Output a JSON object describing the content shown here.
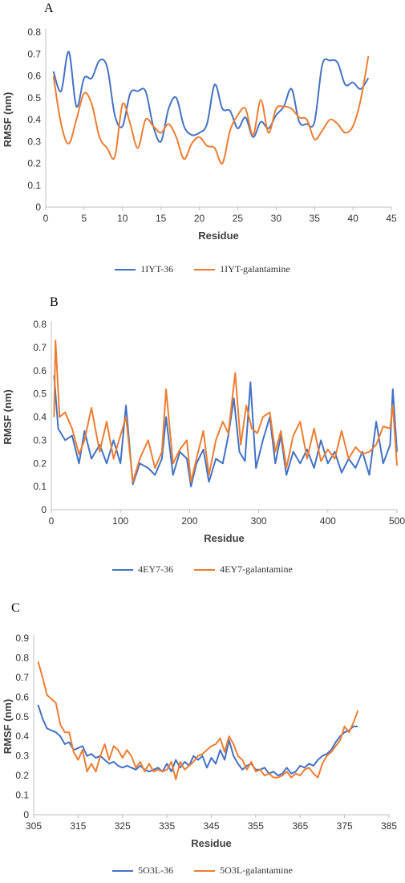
{
  "colors": {
    "series1": "#4472C4",
    "series2": "#ED7D31"
  },
  "panels": [
    {
      "letter": "A",
      "legend": [
        "1IYT-36",
        "1IYT-galantamine"
      ]
    },
    {
      "letter": "B",
      "legend": [
        "4EY7-36",
        "4EY7-galantamine"
      ]
    },
    {
      "letter": "C",
      "legend": [
        "5O3L-36",
        "5O3L-galantamine"
      ]
    }
  ],
  "chart_data": [
    {
      "type": "line",
      "title": "A",
      "xlabel": "Residue",
      "ylabel": "RMSF (nm)",
      "xlim": [
        0,
        45
      ],
      "ylim": [
        0,
        0.8
      ],
      "xticks": [
        0,
        5,
        10,
        15,
        20,
        25,
        30,
        35,
        40,
        45
      ],
      "yticks": [
        0,
        0.1,
        0.2,
        0.3,
        0.4,
        0.5,
        0.6,
        0.7,
        0.8
      ],
      "ytick_labels": [
        "0",
        "0.1",
        "0.2",
        "0.3",
        "0.4",
        "0.5",
        "0.6",
        "0.7",
        "0.8"
      ],
      "smooth": true,
      "series": [
        {
          "name": "1IYT-36",
          "x": [
            1,
            2,
            3,
            4,
            5,
            6,
            7,
            8,
            9,
            10,
            11,
            12,
            13,
            14,
            15,
            16,
            17,
            18,
            19,
            20,
            21,
            22,
            23,
            24,
            25,
            26,
            27,
            28,
            29,
            30,
            31,
            32,
            33,
            34,
            35,
            36,
            37,
            38,
            39,
            40,
            41,
            42
          ],
          "y": [
            0.62,
            0.53,
            0.71,
            0.46,
            0.59,
            0.59,
            0.67,
            0.64,
            0.42,
            0.37,
            0.52,
            0.53,
            0.53,
            0.37,
            0.3,
            0.45,
            0.5,
            0.37,
            0.33,
            0.34,
            0.38,
            0.56,
            0.45,
            0.44,
            0.36,
            0.41,
            0.32,
            0.39,
            0.36,
            0.42,
            0.46,
            0.54,
            0.39,
            0.38,
            0.39,
            0.65,
            0.67,
            0.66,
            0.56,
            0.57,
            0.54,
            0.59
          ]
        },
        {
          "name": "1IYT-galantamine",
          "x": [
            1,
            2,
            3,
            4,
            5,
            6,
            7,
            8,
            9,
            10,
            11,
            12,
            13,
            14,
            15,
            16,
            17,
            18,
            19,
            20,
            21,
            22,
            23,
            24,
            25,
            26,
            27,
            28,
            29,
            30,
            31,
            32,
            33,
            34,
            35,
            36,
            37,
            38,
            39,
            40,
            41,
            42
          ],
          "y": [
            0.6,
            0.38,
            0.29,
            0.4,
            0.52,
            0.47,
            0.32,
            0.27,
            0.23,
            0.47,
            0.38,
            0.27,
            0.4,
            0.37,
            0.34,
            0.38,
            0.32,
            0.22,
            0.29,
            0.32,
            0.28,
            0.27,
            0.2,
            0.35,
            0.42,
            0.45,
            0.33,
            0.49,
            0.34,
            0.45,
            0.46,
            0.45,
            0.41,
            0.4,
            0.31,
            0.35,
            0.4,
            0.38,
            0.34,
            0.37,
            0.49,
            0.69
          ]
        }
      ]
    },
    {
      "type": "line",
      "title": "B",
      "xlabel": "Residue",
      "ylabel": "RMSF (nm)",
      "xlim": [
        0,
        500
      ],
      "ylim": [
        0,
        0.8
      ],
      "xticks": [
        0,
        100,
        200,
        300,
        400,
        500
      ],
      "yticks": [
        0,
        0.1,
        0.2,
        0.3,
        0.4,
        0.5,
        0.6,
        0.7,
        0.8
      ],
      "ytick_labels": [
        "0",
        "0.1",
        "0.2",
        "0.3",
        "0.4",
        "0.5",
        "0.6",
        "0.7",
        "0.8"
      ],
      "smooth": false,
      "series": [
        {
          "name": "4EY7-36",
          "x": [
            4,
            10,
            20,
            30,
            40,
            48,
            58,
            70,
            80,
            90,
            100,
            108,
            118,
            128,
            140,
            150,
            160,
            166,
            176,
            186,
            196,
            202,
            210,
            220,
            228,
            238,
            248,
            256,
            264,
            272,
            280,
            288,
            296,
            306,
            316,
            324,
            332,
            340,
            350,
            360,
            370,
            380,
            390,
            400,
            410,
            420,
            430,
            440,
            450,
            460,
            470,
            480,
            490,
            494,
            500
          ],
          "y": [
            0.58,
            0.35,
            0.3,
            0.32,
            0.2,
            0.34,
            0.22,
            0.28,
            0.2,
            0.3,
            0.2,
            0.45,
            0.11,
            0.2,
            0.18,
            0.15,
            0.22,
            0.4,
            0.15,
            0.25,
            0.22,
            0.1,
            0.2,
            0.26,
            0.12,
            0.22,
            0.2,
            0.32,
            0.48,
            0.25,
            0.21,
            0.55,
            0.18,
            0.3,
            0.4,
            0.2,
            0.32,
            0.15,
            0.25,
            0.2,
            0.26,
            0.18,
            0.3,
            0.2,
            0.25,
            0.16,
            0.22,
            0.18,
            0.25,
            0.15,
            0.38,
            0.2,
            0.28,
            0.52,
            0.25
          ]
        },
        {
          "name": "4EY7-galantamine",
          "x": [
            4,
            6,
            12,
            20,
            30,
            40,
            48,
            58,
            70,
            80,
            90,
            100,
            108,
            118,
            128,
            140,
            150,
            160,
            166,
            176,
            186,
            196,
            202,
            210,
            220,
            228,
            238,
            248,
            256,
            266,
            274,
            282,
            290,
            298,
            306,
            316,
            324,
            332,
            340,
            350,
            360,
            370,
            380,
            390,
            400,
            410,
            420,
            430,
            440,
            450,
            460,
            470,
            480,
            490,
            494,
            500
          ],
          "y": [
            0.4,
            0.73,
            0.4,
            0.42,
            0.35,
            0.24,
            0.3,
            0.44,
            0.25,
            0.38,
            0.22,
            0.32,
            0.4,
            0.12,
            0.22,
            0.3,
            0.18,
            0.25,
            0.52,
            0.2,
            0.26,
            0.3,
            0.12,
            0.22,
            0.34,
            0.15,
            0.3,
            0.38,
            0.33,
            0.59,
            0.28,
            0.45,
            0.35,
            0.33,
            0.4,
            0.42,
            0.25,
            0.34,
            0.18,
            0.32,
            0.38,
            0.22,
            0.35,
            0.21,
            0.26,
            0.22,
            0.34,
            0.22,
            0.27,
            0.24,
            0.25,
            0.28,
            0.36,
            0.35,
            0.45,
            0.19
          ]
        }
      ]
    },
    {
      "type": "line",
      "title": "C",
      "xlabel": "Residue",
      "ylabel": "RMSF (nm)",
      "xlim": [
        305,
        385
      ],
      "ylim": [
        0,
        0.9
      ],
      "xticks": [
        305,
        315,
        325,
        335,
        345,
        355,
        365,
        375,
        385
      ],
      "yticks": [
        0,
        0.1,
        0.2,
        0.3,
        0.4,
        0.5,
        0.6,
        0.7,
        0.8,
        0.9
      ],
      "ytick_labels": [
        "0",
        "0.1",
        "0.2",
        "0.3",
        "0.4",
        "0.5",
        "0.6",
        "0.7",
        "0.8",
        "0.9"
      ],
      "smooth": false,
      "series": [
        {
          "name": "5O3L-36",
          "x": [
            306,
            307,
            308,
            309,
            310,
            311,
            312,
            313,
            314,
            315,
            316,
            317,
            318,
            319,
            320,
            321,
            322,
            323,
            324,
            325,
            326,
            327,
            328,
            329,
            330,
            331,
            332,
            333,
            334,
            335,
            336,
            337,
            338,
            339,
            340,
            341,
            342,
            343,
            344,
            345,
            346,
            347,
            348,
            349,
            350,
            351,
            352,
            353,
            354,
            355,
            356,
            357,
            358,
            359,
            360,
            361,
            362,
            363,
            364,
            365,
            366,
            367,
            368,
            369,
            370,
            371,
            372,
            373,
            374,
            375,
            376,
            377,
            378
          ],
          "y": [
            0.56,
            0.49,
            0.44,
            0.43,
            0.42,
            0.4,
            0.36,
            0.37,
            0.33,
            0.34,
            0.35,
            0.3,
            0.31,
            0.29,
            0.3,
            0.28,
            0.26,
            0.27,
            0.25,
            0.24,
            0.25,
            0.24,
            0.23,
            0.25,
            0.23,
            0.22,
            0.23,
            0.24,
            0.22,
            0.26,
            0.22,
            0.28,
            0.24,
            0.27,
            0.25,
            0.3,
            0.28,
            0.3,
            0.24,
            0.29,
            0.26,
            0.33,
            0.28,
            0.38,
            0.3,
            0.26,
            0.23,
            0.25,
            0.26,
            0.23,
            0.23,
            0.24,
            0.21,
            0.22,
            0.2,
            0.21,
            0.24,
            0.21,
            0.22,
            0.25,
            0.24,
            0.26,
            0.25,
            0.28,
            0.3,
            0.31,
            0.33,
            0.37,
            0.4,
            0.42,
            0.43,
            0.45,
            0.45
          ]
        },
        {
          "name": "5O3L-galantamine",
          "x": [
            306,
            307,
            308,
            309,
            310,
            311,
            312,
            313,
            314,
            315,
            316,
            317,
            318,
            319,
            320,
            321,
            322,
            323,
            324,
            325,
            326,
            327,
            328,
            329,
            330,
            331,
            332,
            333,
            334,
            335,
            336,
            337,
            338,
            339,
            340,
            341,
            342,
            343,
            344,
            345,
            346,
            347,
            348,
            349,
            350,
            351,
            352,
            353,
            354,
            355,
            356,
            357,
            358,
            359,
            360,
            361,
            362,
            363,
            364,
            365,
            366,
            367,
            368,
            369,
            370,
            371,
            372,
            373,
            374,
            375,
            376,
            377,
            378
          ],
          "y": [
            0.78,
            0.7,
            0.61,
            0.59,
            0.57,
            0.46,
            0.42,
            0.42,
            0.32,
            0.28,
            0.33,
            0.22,
            0.26,
            0.22,
            0.3,
            0.36,
            0.28,
            0.35,
            0.33,
            0.29,
            0.33,
            0.3,
            0.24,
            0.27,
            0.22,
            0.26,
            0.22,
            0.23,
            0.22,
            0.23,
            0.27,
            0.18,
            0.27,
            0.23,
            0.25,
            0.27,
            0.3,
            0.31,
            0.33,
            0.35,
            0.36,
            0.39,
            0.32,
            0.4,
            0.36,
            0.3,
            0.28,
            0.23,
            0.27,
            0.22,
            0.23,
            0.2,
            0.21,
            0.19,
            0.19,
            0.2,
            0.22,
            0.19,
            0.21,
            0.2,
            0.23,
            0.24,
            0.21,
            0.19,
            0.26,
            0.3,
            0.32,
            0.35,
            0.38,
            0.45,
            0.42,
            0.47,
            0.53
          ]
        }
      ]
    }
  ]
}
